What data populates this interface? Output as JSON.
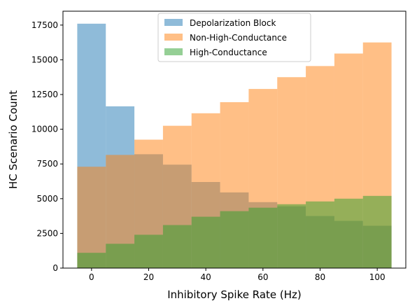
{
  "chart_data": {
    "type": "bar",
    "title": "",
    "xlabel": "Inhibitory Spike Rate (Hz)",
    "ylabel": "HC Scenario Count",
    "xlim": [
      -10,
      110
    ],
    "ylim": [
      0,
      18500
    ],
    "bin_edges": [
      -5,
      5,
      15,
      25,
      35,
      45,
      55,
      65,
      75,
      85,
      95,
      105
    ],
    "x_ticks": [
      0,
      20,
      40,
      60,
      80,
      100
    ],
    "x_tick_labels": [
      "0",
      "20",
      "40",
      "60",
      "80",
      "100"
    ],
    "y_ticks": [
      0,
      2500,
      5000,
      7500,
      10000,
      12500,
      15000,
      17500
    ],
    "y_tick_labels": [
      "0",
      "2500",
      "5000",
      "7500",
      "10000",
      "12500",
      "15000",
      "17500"
    ],
    "legend_placement": "top-center",
    "grid": false,
    "series": [
      {
        "name": "Depolarization Block",
        "color": "#1f77b4",
        "alpha": 0.5,
        "values": [
          17600,
          11650,
          8200,
          7450,
          6200,
          5450,
          4750,
          4450,
          3750,
          3400,
          3050
        ]
      },
      {
        "name": "Non-High-Conductance",
        "color": "#ff7f0e",
        "alpha": 0.5,
        "values": [
          7300,
          8150,
          9250,
          10250,
          11150,
          11950,
          12900,
          13750,
          14550,
          15450,
          16250
        ]
      },
      {
        "name": "High-Conductance",
        "color": "#2ca02c",
        "alpha": 0.5,
        "values": [
          1100,
          1750,
          2400,
          3100,
          3700,
          4100,
          4350,
          4600,
          4800,
          5000,
          5200
        ]
      }
    ]
  }
}
